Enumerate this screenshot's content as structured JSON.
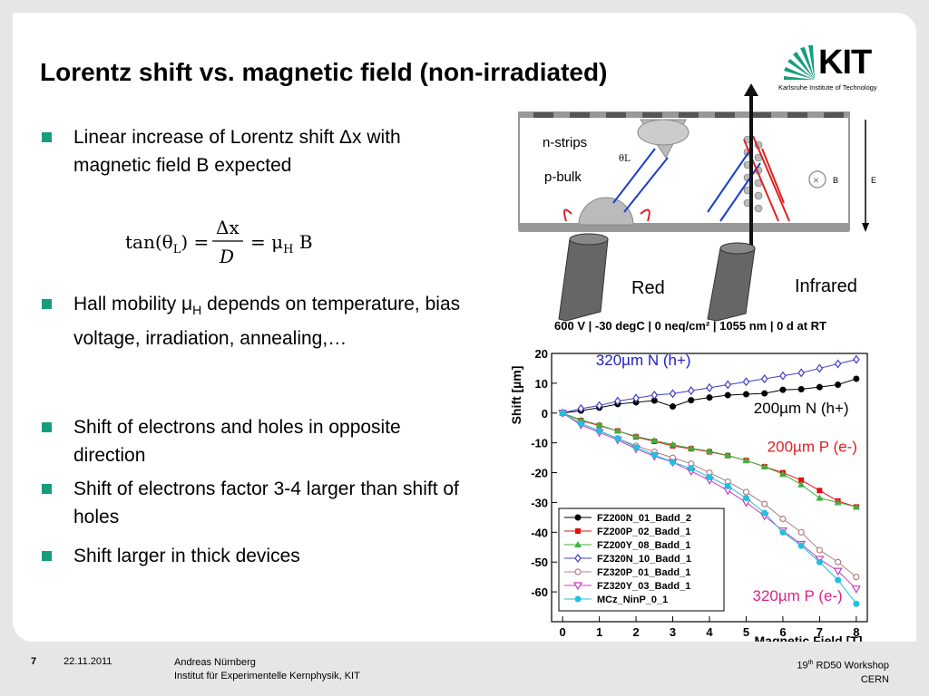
{
  "slide": {
    "title": "Lorentz shift vs. magnetic field (non-irradiated)",
    "logo": {
      "text": "KIT",
      "subtitle": "Karlsruhe Institute of Technology",
      "accent": "#179c7d"
    },
    "bullets": [
      "Linear increase of Lorentz shift Δx with magnetic field B expected",
      "Hall mobility μH depends on temperature, bias voltage, irradiation, annealing,…",
      "Shift of electrons and holes in opposite direction",
      "Shift of electrons factor 3-4 larger than shift of holes",
      "Shift larger in thick devices"
    ],
    "formula": {
      "lhs": "tan(θL) =",
      "num": "Δx",
      "den": "D",
      "rhs": "= μH B"
    },
    "diagram": {
      "label_nstrips": "n-strips",
      "label_pbulk": "p-bulk",
      "label_theta": "θL",
      "label_b": "B",
      "label_e": "E",
      "laser_red": "Red",
      "laser_infrared": "Infrared"
    }
  },
  "chart_data": {
    "type": "line",
    "title": "600 V | -30 degC | 0 neq/cm² | 1055 nm | 0 d at RT",
    "xlabel": "Magnetic Field [T]",
    "ylabel": "Shift [µm]",
    "xlim": [
      -0.3,
      8.3
    ],
    "ylim": [
      -70,
      20
    ],
    "xticks": [
      0,
      1,
      2,
      3,
      4,
      5,
      6,
      7,
      8
    ],
    "yticks": [
      20,
      10,
      0,
      -10,
      -20,
      -30,
      -40,
      -50,
      -60
    ],
    "grid": true,
    "legend_position": "bottom-left",
    "annotations": [
      {
        "text": "320µm N (h+)",
        "color": "#2020c8",
        "x": 2.2,
        "y": 16
      },
      {
        "text": "200µm N (h+)",
        "color": "#000000",
        "x": 6.5,
        "y": 0
      },
      {
        "text": "200µm P (e-)",
        "color": "#e02020",
        "x": 6.8,
        "y": -13
      },
      {
        "text": "320µm P (e-)",
        "color": "#e0208c",
        "x": 6.4,
        "y": -63
      }
    ],
    "series": [
      {
        "name": "FZ200N_01_Badd_2",
        "color": "#000000",
        "marker": "circle",
        "x": [
          0,
          0.5,
          1,
          1.5,
          2,
          2.5,
          3,
          3.5,
          4,
          4.5,
          5,
          5.5,
          6,
          6.5,
          7,
          7.5,
          8
        ],
        "y": [
          0,
          0.8,
          1.8,
          3,
          3.6,
          4.2,
          2.2,
          4.3,
          5.2,
          6,
          6.3,
          6.6,
          7.8,
          8,
          8.7,
          9.5,
          11.5
        ]
      },
      {
        "name": "FZ200P_02_Badd_1",
        "color": "#e01010",
        "marker": "square",
        "x": [
          0,
          0.5,
          1,
          1.5,
          2,
          2.5,
          3,
          3.5,
          4,
          4.5,
          5,
          5.5,
          6,
          6.5,
          7,
          7.5,
          8
        ],
        "y": [
          0,
          -2.5,
          -4.2,
          -6,
          -8,
          -9.5,
          -11,
          -12,
          -13,
          -14.3,
          -15.9,
          -18,
          -20,
          -22.5,
          -26,
          -29.5,
          -31.5
        ]
      },
      {
        "name": "FZ200Y_08_Badd_1",
        "color": "#40b040",
        "marker": "triangle",
        "x": [
          0,
          0.5,
          1,
          1.5,
          2,
          2.5,
          3,
          3.5,
          4,
          4.5,
          5,
          5.5,
          6,
          6.5,
          7,
          7.5,
          8
        ],
        "y": [
          0,
          -2.3,
          -4,
          -6,
          -7.8,
          -9.2,
          -10.6,
          -11.8,
          -12.8,
          -14.2,
          -15.9,
          -18,
          -20.5,
          -24,
          -28.5,
          -30,
          -31.5
        ]
      },
      {
        "name": "FZ320N_10_Badd_1",
        "color": "#4040c0",
        "marker": "diamond",
        "x": [
          0,
          0.5,
          1,
          1.5,
          2,
          2.5,
          3,
          3.5,
          4,
          4.5,
          5,
          5.5,
          6,
          6.5,
          7,
          7.5,
          8
        ],
        "y": [
          0,
          1.5,
          2.5,
          4,
          5,
          6,
          6.5,
          7.5,
          8.5,
          9.5,
          10.5,
          11.5,
          12.5,
          13.5,
          15,
          16.5,
          18
        ]
      },
      {
        "name": "FZ320P_01_Badd_1",
        "color": "#b08080",
        "marker": "circle-open",
        "x": [
          0,
          0.5,
          1,
          1.5,
          2,
          2.5,
          3,
          3.5,
          4,
          4.5,
          5,
          5.5,
          6,
          6.5,
          7,
          7.5,
          8
        ],
        "y": [
          0,
          -3.5,
          -6,
          -8.5,
          -11,
          -13,
          -15,
          -17,
          -20,
          -23,
          -26.5,
          -30.5,
          -35.5,
          -40,
          -46,
          -50,
          -55
        ]
      },
      {
        "name": "FZ320Y_03_Badd_1",
        "color": "#c040c0",
        "marker": "triangle-open",
        "x": [
          0,
          0.5,
          1,
          1.5,
          2,
          2.5,
          3,
          3.5,
          4,
          4.5,
          5,
          5.5,
          6,
          6.5,
          7,
          7.5,
          8
        ],
        "y": [
          0,
          -4,
          -6.5,
          -9,
          -12,
          -14.5,
          -16.5,
          -19.5,
          -22.5,
          -26,
          -30,
          -34.5,
          -39.5,
          -44,
          -49,
          -53,
          -59
        ]
      },
      {
        "name": "MCz_NinP_0_1",
        "color": "#20c0e0",
        "marker": "circle",
        "x": [
          0,
          0.5,
          1,
          1.5,
          2,
          2.5,
          3,
          3.5,
          4,
          4.5,
          5,
          5.5,
          6,
          6.5,
          7,
          7.5,
          8
        ],
        "y": [
          0,
          -3.5,
          -6,
          -8.5,
          -11.5,
          -14,
          -16.5,
          -18.5,
          -21.5,
          -24.5,
          -28.5,
          -33.5,
          -40,
          -44.5,
          -50,
          -56,
          -64
        ]
      }
    ]
  },
  "footer": {
    "page": "7",
    "date": "22.11.2011",
    "author": "Andreas Nürnberg",
    "institute": "Institut für Experimentelle Kernphysik, KIT",
    "event": "19th RD50 Workshop",
    "location": "CERN"
  }
}
